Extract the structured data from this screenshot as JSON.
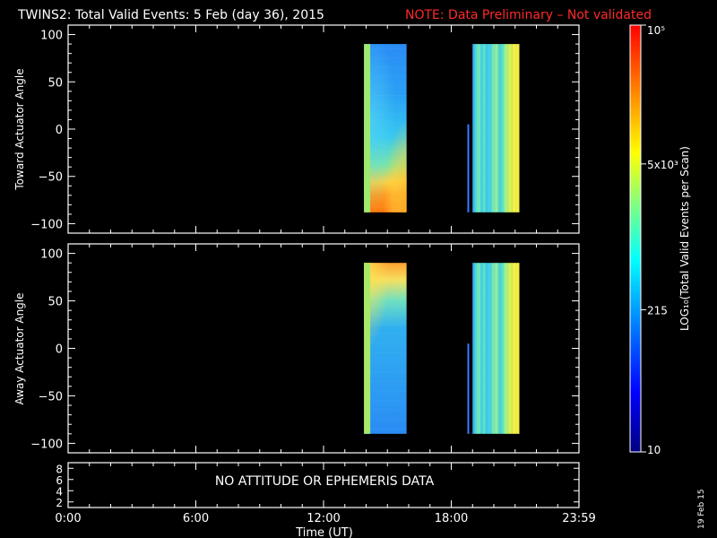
{
  "header": {
    "title": "TWINS2: Total Valid Events:  5 Feb (day  36), 2015",
    "note": "NOTE: Data Preliminary – Not validated",
    "note_color": "#ff2a2a"
  },
  "x_axis": {
    "label": "Time (UT)",
    "tick_labels": [
      "0:00",
      "6:00",
      "12:00",
      "18:00",
      "23:59"
    ]
  },
  "footer": {
    "message": "NO ATTITUDE OR EPHEMERIS DATA",
    "date_stamp": "19 Feb 15"
  },
  "colorbar": {
    "label": "LOG₁₀(Total Valid  Events per Scan)",
    "labels": [
      "10",
      "215",
      "5x10³",
      "10⁵"
    ],
    "values": [
      10,
      215,
      5000,
      100000
    ],
    "scale": "log",
    "colormap": [
      "#000080",
      "#0000ff",
      "#0080ff",
      "#00ffff",
      "#80ff80",
      "#ffff00",
      "#ff8000",
      "#ff0000"
    ]
  },
  "chart_data": [
    {
      "type": "heatmap",
      "name": "toward",
      "ylabel": "Toward Actuator Angle",
      "xlim": [
        0,
        24
      ],
      "ylim": [
        -110,
        110
      ],
      "y_ticks": [
        "100",
        "50",
        "0",
        "−50",
        "−100"
      ],
      "scale": "log",
      "blocks": [
        {
          "x_start": 13.9,
          "x_end": 15.9,
          "y_start": -88,
          "y_end": 90,
          "gradient": "green strip at left edge, blue-cyan body, cyan arc near 0°, orange/red toward −90°"
        },
        {
          "x_start": 19.0,
          "x_end": 21.2,
          "y_start": -88,
          "y_end": 90,
          "gradient": "vertical stripes cyan/green/yellow"
        }
      ],
      "lines": [
        {
          "x": 18.8,
          "y_start": -88,
          "y_end": 5,
          "color": "#2f7fff"
        }
      ]
    },
    {
      "type": "heatmap",
      "name": "away",
      "ylabel": "Away Actuator Angle",
      "xlim": [
        0,
        24
      ],
      "ylim": [
        -110,
        110
      ],
      "y_ticks": [
        "100",
        "50",
        "0",
        "−50",
        "−100"
      ],
      "scale": "log",
      "blocks": [
        {
          "x_start": 13.9,
          "x_end": 15.9,
          "y_start": -90,
          "y_end": 90,
          "gradient": "orange/yellow near +90° fading to blue-cyan body, green strip at left"
        },
        {
          "x_start": 19.0,
          "x_end": 21.2,
          "y_start": -90,
          "y_end": 90,
          "gradient": "vertical stripes cyan/green/yellow"
        }
      ],
      "lines": [
        {
          "x": 18.8,
          "y_start": -90,
          "y_end": 5,
          "color": "#2f7fff"
        }
      ]
    }
  ],
  "info_panel": {
    "y_ticks": [
      "8",
      "6",
      "4",
      "2"
    ]
  }
}
